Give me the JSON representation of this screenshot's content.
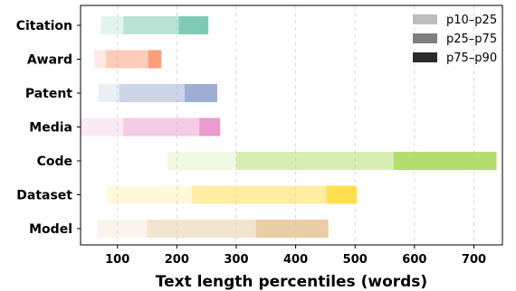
{
  "chart_data": {
    "type": "bar",
    "orientation": "horizontal-range",
    "xlabel": "Text length percentiles (words)",
    "xlim": [
      38,
      748
    ],
    "xticks": [
      100,
      200,
      300,
      400,
      500,
      600,
      700
    ],
    "grid": "vertical-dashed",
    "legend_position": "top-right",
    "legend": [
      {
        "label": "p10–p25",
        "color": "#bdbdbd"
      },
      {
        "label": "p25–p75",
        "color": "#7f7f7f"
      },
      {
        "label": "p75–p90",
        "color": "#2b2b2b"
      }
    ],
    "categories": [
      "Citation",
      "Award",
      "Patent",
      "Media",
      "Code",
      "Dataset",
      "Model"
    ],
    "series": [
      {
        "category": "Citation",
        "color": "#66c2a5",
        "p10": 72,
        "p25": 110,
        "p75": 203,
        "p90": 253
      },
      {
        "category": "Award",
        "color": "#fc8d62",
        "p10": 61,
        "p25": 81,
        "p75": 152,
        "p90": 174
      },
      {
        "category": "Patent",
        "color": "#8da0cb",
        "p10": 68,
        "p25": 103,
        "p75": 213,
        "p90": 268
      },
      {
        "category": "Media",
        "color": "#e78ac3",
        "p10": 38,
        "p25": 110,
        "p75": 238,
        "p90": 273
      },
      {
        "category": "Code",
        "color": "#a6d854",
        "p10": 185,
        "p25": 300,
        "p75": 565,
        "p90": 738
      },
      {
        "category": "Dataset",
        "color": "#ffd92f",
        "p10": 82,
        "p25": 225,
        "p75": 452,
        "p90": 503
      },
      {
        "category": "Model",
        "color": "#e5c494",
        "p10": 67,
        "p25": 150,
        "p75": 333,
        "p90": 455
      }
    ]
  }
}
